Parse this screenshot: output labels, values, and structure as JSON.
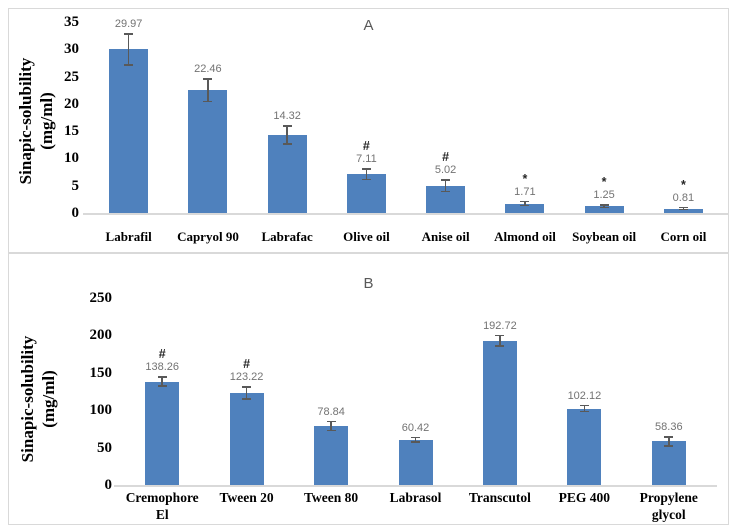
{
  "figure_title": "Sinapic acid solubility bar charts",
  "chart_data": [
    {
      "type": "bar",
      "panel_label": "A",
      "ylabel": "Sinapic-solubility (mg/ml)",
      "ylabel_lines": [
        "Sinapic-solubility",
        "(mg/ml)"
      ],
      "xlabel": "",
      "ylim": [
        0,
        35
      ],
      "yticks": [
        0,
        5,
        10,
        15,
        20,
        25,
        30,
        35
      ],
      "grid": false,
      "legend": false,
      "categories": [
        "Labrafil",
        "Capryol 90",
        "Labrafac",
        "Olive oil",
        "Anise oil",
        "Almond oil",
        "Soybean oil",
        "Corn oil"
      ],
      "values": [
        29.97,
        22.46,
        14.32,
        7.11,
        5.02,
        1.71,
        1.25,
        0.81
      ],
      "value_labels": [
        "29.97",
        "22.46",
        "14.32",
        "7.11",
        "5.02",
        "1.71",
        "1.25",
        "0.81"
      ],
      "errors": [
        3.0,
        2.2,
        1.8,
        1.1,
        1.2,
        0.5,
        0.4,
        0.3
      ],
      "annotations": [
        "",
        "",
        "",
        "#",
        "#",
        "*",
        "*",
        "*"
      ],
      "bar_color": "#4F81BD",
      "error_bar_color": "#595959",
      "value_label_color": "#737373"
    },
    {
      "type": "bar",
      "panel_label": "B",
      "ylabel": "Sinapic-solubility (mg/ml)",
      "ylabel_lines": [
        "Sinapic-solubility",
        "(mg/ml)"
      ],
      "xlabel": "",
      "ylim": [
        0,
        250
      ],
      "yticks": [
        0,
        50,
        100,
        150,
        200,
        250
      ],
      "grid": false,
      "legend": false,
      "categories": [
        "Cremophore\nEl",
        "Tween 20",
        "Tween 80",
        "Labrasol",
        "Transcutol",
        "PEG 400",
        "Propylene\nglycol"
      ],
      "values": [
        138.26,
        123.22,
        78.84,
        60.42,
        192.72,
        102.12,
        58.36
      ],
      "value_labels": [
        "138.26",
        "123.22",
        "78.84",
        "60.42",
        "192.72",
        "102.12",
        "58.36"
      ],
      "errors": [
        7,
        9,
        7,
        4,
        8,
        5,
        7
      ],
      "annotations": [
        "#",
        "#",
        "",
        "",
        "",
        "",
        ""
      ],
      "bar_color": "#4F81BD",
      "error_bar_color": "#595959",
      "value_label_color": "#737373"
    }
  ]
}
